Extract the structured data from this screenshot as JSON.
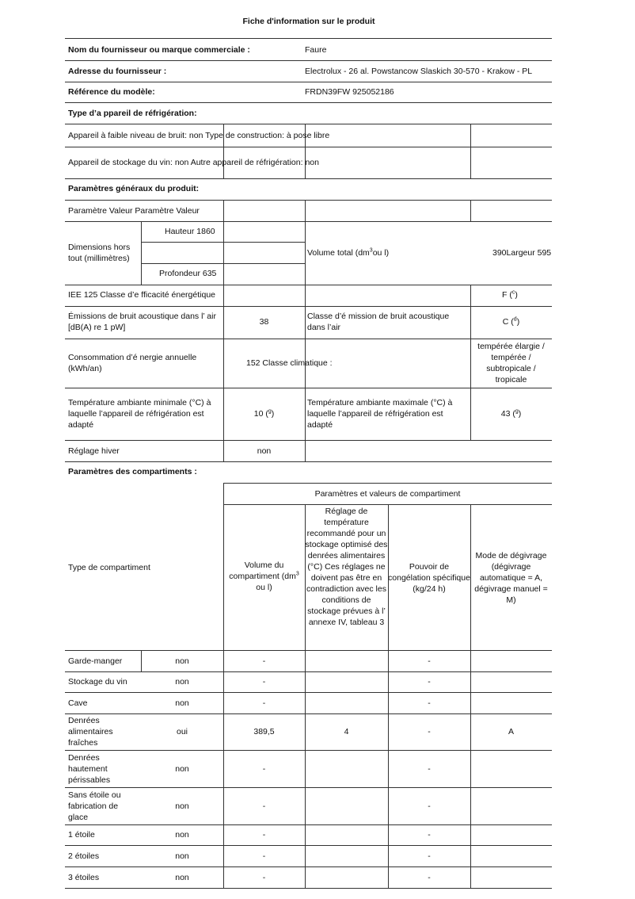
{
  "title": "Fiche d'information sur le produit",
  "supplier": {
    "name_label": "Nom du fournisseur ou marque commerciale :",
    "name": "Faure",
    "address_label": "Adresse du fournisseur :",
    "address": "Electrolux - 26 al. Powstancow Slaskich 30-570 - Krakow - PL",
    "model_label": "Référence du modèle:",
    "model": "FRDN39FW 925052186"
  },
  "type": {
    "heading": "Type d’a ppareil de réfrigération:",
    "row1": "Appareil à faible niveau de bruit: non Type de construction: à pose libre",
    "row2": "Appareil de stockage du vin: non Autre appareil de réfrigération: non"
  },
  "general": {
    "heading": "Paramètres généraux du produit:",
    "header": "Paramètre Valeur Paramètre Valeur",
    "dims_label": "Dimensions hors tout (millimètres)",
    "height": "Hauteur 1860",
    "depth": "Profondeur 635",
    "volume_label_pre": "Volume total (dm",
    "volume_sup": "3",
    "volume_label_post": "ou l)",
    "volume_value": "390Largeur 595",
    "iee": "IEE 125 Classe d’e fficacité énergétique",
    "energy_class": "F (",
    "energy_class_sup": "c",
    "noise_label": "Émissions de bruit acoustique dans l’ air [dB(A) re 1 pW]",
    "noise_value": "38",
    "noise_class_label": "Classe d’é mission de bruit acoustique dans l’air",
    "noise_class": "C (",
    "noise_class_sup": "d",
    "consumption_label": "Consommation d’é nergie annuelle (kWh/an)",
    "consumption": "152 Classe climatique :",
    "climate_class": "tempérée élargie / tempérée / subtropicale / tropicale",
    "tmin_label": "Température ambiante minimale (°C) à laquelle l’appareil de réfrigération est adapté",
    "tmin": "10 (",
    "tmin_sup": "g",
    "tmax_label": "Température ambiante maximale (°C) à laquelle l’appareil de réfrigération est adapté",
    "tmax": "43 (",
    "tmax_sup": "g",
    "winter_label": "Réglage hiver",
    "winter": "non"
  },
  "compartments": {
    "heading": "Paramètres des compartiments :",
    "group_header": "Paramètres et valeurs de compartiment",
    "type_header": "Type de compartiment",
    "col_volume_pre": "Volume du compartiment (dm",
    "col_volume_sup": "3",
    "col_volume_post": " ou l)",
    "col_temp": "Réglage de température recommandé pour un stockage optimisé des denrées alimentaires (°C) Ces réglages ne doivent pas être en contradiction avec les conditions de stockage prévues à l’ annexe IV, tableau 3",
    "col_freeze": "Pouvoir de congélation spécifique (kg/24 h)",
    "col_defrost": "Mode de dégivrage (dégivrage automatique = A, dégivrage manuel = M)",
    "rows": [
      {
        "name": "Garde-manger",
        "present": "non",
        "volume": "-",
        "temp": "",
        "freeze": "-",
        "defrost": ""
      },
      {
        "name": "Stockage du vin",
        "present": "non",
        "volume": "-",
        "temp": "",
        "freeze": "-",
        "defrost": ""
      },
      {
        "name": "Cave",
        "present": "non",
        "volume": "-",
        "temp": "",
        "freeze": "-",
        "defrost": ""
      },
      {
        "name": "Denrées alimentaires fraîches",
        "present": "oui",
        "volume": "389,5",
        "temp": "4",
        "freeze": "-",
        "defrost": "A"
      },
      {
        "name": "Denrées hautement périssables",
        "present": "non",
        "volume": "-",
        "temp": "",
        "freeze": "-",
        "defrost": ""
      },
      {
        "name": "Sans étoile ou fabrication de glace",
        "present": "non",
        "volume": "-",
        "temp": "",
        "freeze": "-",
        "defrost": ""
      },
      {
        "name": "1 étoile",
        "present": "non",
        "volume": "-",
        "temp": "",
        "freeze": "-",
        "defrost": ""
      },
      {
        "name": "2 étoiles",
        "present": "non",
        "volume": "-",
        "temp": "",
        "freeze": "-",
        "defrost": ""
      },
      {
        "name": "3 étoiles",
        "present": "non",
        "volume": "-",
        "temp": "",
        "freeze": "-",
        "defrost": ""
      }
    ]
  }
}
